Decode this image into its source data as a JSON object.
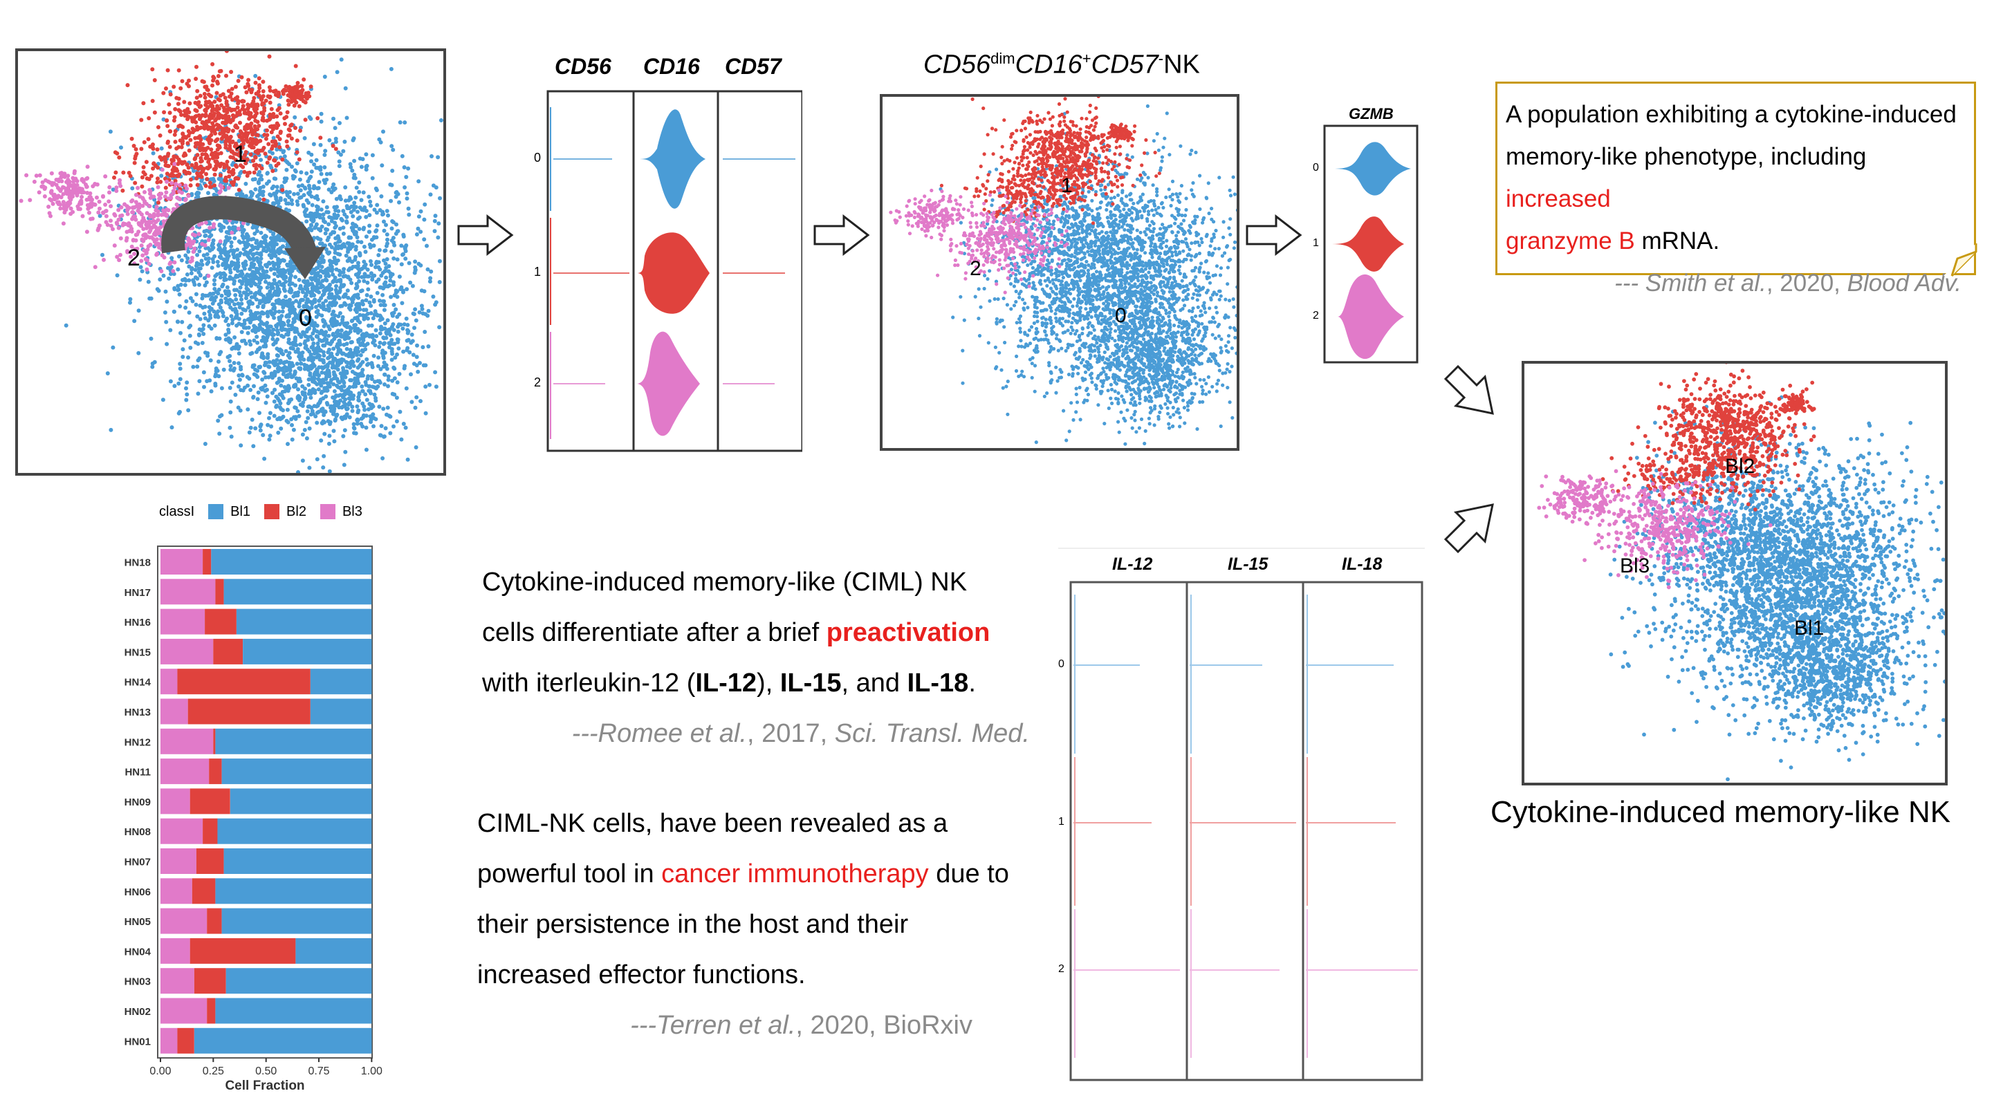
{
  "umap_clusters": {
    "labels": [
      "0",
      "1",
      "2"
    ],
    "colors": {
      "c0": "#4a9cd6",
      "c1": "#e0423d",
      "c2": "#e17ac9"
    }
  },
  "violin1": {
    "genes": [
      "CD56",
      "CD16",
      "CD57"
    ],
    "rows": [
      "0",
      "1",
      "2"
    ]
  },
  "panel_title": {
    "prefix": "CD56",
    "sup1": "dim",
    "mid": "CD16",
    "sup2": "+",
    "mid2": "CD57",
    "sup3": "-",
    "suffix": "NK"
  },
  "gzmb": {
    "gene": "GZMB",
    "rows": [
      "0",
      "1",
      "2"
    ]
  },
  "quote_box": {
    "line1": "A population exhibiting a cytokine-induced",
    "line2": "memory-like phenotype, including ",
    "line2_red": "increased",
    "line3_red": "granzyme B",
    "line3": " mRNA.",
    "cite_pre": "--- Smith et al.",
    "cite_year": ", 2020, ",
    "cite_journal": "Blood Adv."
  },
  "final_umap": {
    "labels": [
      "Bl1",
      "Bl2",
      "Bl3"
    ],
    "caption": "Cytokine-induced memory-like NK"
  },
  "bar_chart": {
    "legend_title": "classI",
    "legend_items": [
      "Bl1",
      "Bl2",
      "Bl3"
    ],
    "xlabel": "Cell Fraction",
    "ticks": [
      "0.00",
      "0.25",
      "0.50",
      "0.75",
      "1.00"
    ]
  },
  "chart_data": {
    "type": "bar",
    "orientation": "horizontal",
    "stacked": true,
    "categories": [
      "HN18",
      "HN17",
      "HN16",
      "HN15",
      "HN14",
      "HN13",
      "HN12",
      "HN11",
      "HN09",
      "HN08",
      "HN07",
      "HN06",
      "HN05",
      "HN04",
      "HN03",
      "HN02",
      "HN01"
    ],
    "series": [
      {
        "name": "Bl3",
        "color": "#e17ac9",
        "values": [
          0.2,
          0.26,
          0.21,
          0.25,
          0.08,
          0.13,
          0.25,
          0.23,
          0.14,
          0.2,
          0.17,
          0.15,
          0.22,
          0.14,
          0.16,
          0.22,
          0.08
        ]
      },
      {
        "name": "Bl2",
        "color": "#e0423d",
        "values": [
          0.04,
          0.04,
          0.15,
          0.14,
          0.63,
          0.58,
          0.01,
          0.06,
          0.19,
          0.07,
          0.13,
          0.11,
          0.07,
          0.5,
          0.15,
          0.04,
          0.08
        ]
      },
      {
        "name": "Bl1",
        "color": "#4a9cd6",
        "values": [
          0.76,
          0.7,
          0.64,
          0.61,
          0.29,
          0.29,
          0.74,
          0.71,
          0.67,
          0.73,
          0.7,
          0.74,
          0.71,
          0.36,
          0.69,
          0.74,
          0.84
        ]
      }
    ],
    "xlabel": "Cell Fraction",
    "xlim": [
      0,
      1
    ],
    "legend_title": "classI",
    "legend_position": "top"
  },
  "text_block1": {
    "l1": "Cytokine-induced memory-like (CIML) NK",
    "l2a": "cells differentiate after a brief ",
    "l2b": "preactivation",
    "l3a": "with iterleukin-12 (",
    "l3b": "IL-12",
    "l3c": "), ",
    "l3d": "IL-15",
    "l3e": ", and ",
    "l3f": "IL-18",
    "l3g": ".",
    "cite_a": "---Romee et al.",
    "cite_b": ", 2017, ",
    "cite_c": "Sci. Transl. Med."
  },
  "text_block2": {
    "l1": "CIML-NK cells, have been revealed as a",
    "l2a": "powerful tool in ",
    "l2b": "cancer immunotherapy",
    "l2c": " due to",
    "l3": "their persistence in the host and their",
    "l4": "increased effector functions.",
    "cite_a": "---Terren et al.",
    "cite_b": ", 2020, BioRxiv"
  },
  "violin2": {
    "genes": [
      "IL-12",
      "IL-15",
      "IL-18"
    ],
    "rows": [
      "0",
      "1",
      "2"
    ]
  }
}
